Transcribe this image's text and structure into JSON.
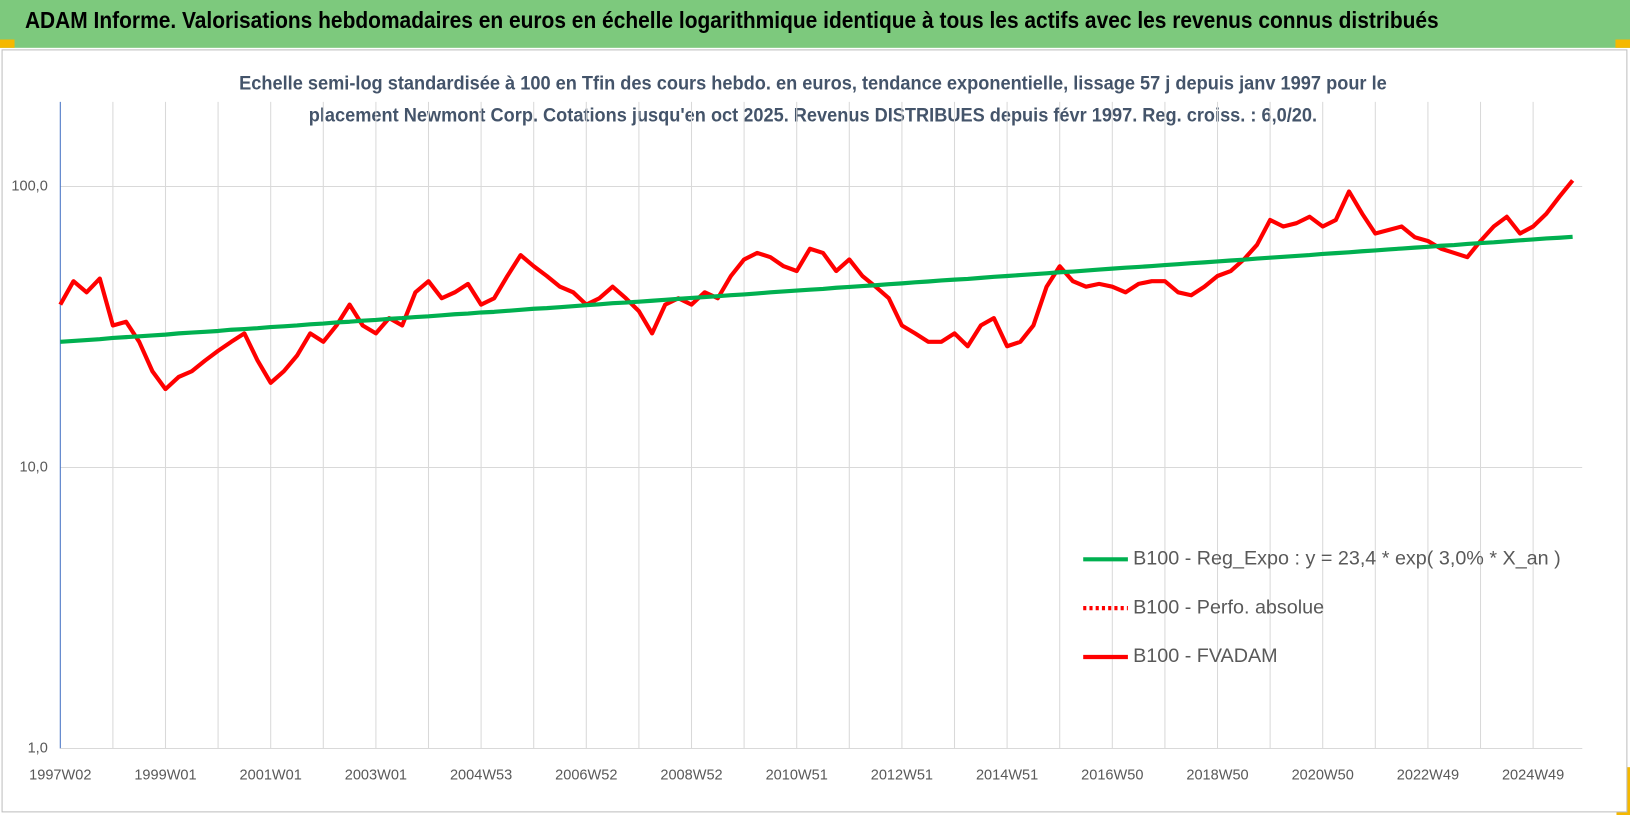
{
  "chart_data": {
    "type": "line",
    "title": "ADAM Informe. Valorisations hebdomadaires en euros en échelle logarithmique identique à tous les actifs avec les revenus connus distribués",
    "subtitle": [
      "Echelle semi-log standardisée à 100 en Tfin des cours hebdo. en euros, tendance exponentielle, lissage 57 j depuis janv 1997 pour le",
      "placement Newmont Corp. Cotations jusqu'en oct 2025. Revenus DISTRIBUES depuis févr 1997. Reg. croiss. : 6,0/20."
    ],
    "categories": [
      "1997W02",
      null,
      null,
      null,
      null,
      null,
      null,
      null,
      "1999W01",
      null,
      null,
      null,
      null,
      null,
      null,
      null,
      "2001W01",
      null,
      null,
      null,
      null,
      null,
      null,
      null,
      "2003W01",
      null,
      null,
      null,
      null,
      null,
      null,
      null,
      "2004W53",
      null,
      null,
      null,
      null,
      null,
      null,
      null,
      "2006W52",
      null,
      null,
      null,
      null,
      null,
      null,
      null,
      "2008W52",
      null,
      null,
      null,
      null,
      null,
      null,
      null,
      "2010W51",
      null,
      null,
      null,
      null,
      null,
      null,
      null,
      "2012W51",
      null,
      null,
      null,
      null,
      null,
      null,
      null,
      "2014W51",
      null,
      null,
      null,
      null,
      null,
      null,
      null,
      "2016W50",
      null,
      null,
      null,
      null,
      null,
      null,
      null,
      "2018W50",
      null,
      null,
      null,
      null,
      null,
      null,
      null,
      "2020W50",
      null,
      null,
      null,
      null,
      null,
      null,
      null,
      "2022W49",
      null,
      null,
      null,
      null,
      null,
      null,
      null,
      "2024W49",
      null,
      null,
      null
    ],
    "series": [
      {
        "name": "B100 - Reg_Expo : y = 23,4 * exp( 3,0% *  X_an )",
        "color": "#00b050",
        "style": "solid",
        "values": [
          28.0,
          28.2,
          28.4,
          28.6,
          28.9,
          29.1,
          29.3,
          29.5,
          29.7,
          30.0,
          30.2,
          30.4,
          30.6,
          30.9,
          31.1,
          31.3,
          31.6,
          31.8,
          32.0,
          32.3,
          32.5,
          32.8,
          33.0,
          33.3,
          33.5,
          33.8,
          34.0,
          34.3,
          34.5,
          34.8,
          35.1,
          35.3,
          35.6,
          35.8,
          36.1,
          36.4,
          36.7,
          36.9,
          37.2,
          37.5,
          37.8,
          38.1,
          38.4,
          38.6,
          38.9,
          39.2,
          39.5,
          39.8,
          40.1,
          40.4,
          40.7,
          41.0,
          41.3,
          41.6,
          42.0,
          42.3,
          42.6,
          42.9,
          43.2,
          43.6,
          43.9,
          44.2,
          44.5,
          44.9,
          45.2,
          45.6,
          45.9,
          46.3,
          46.6,
          46.9,
          47.3,
          47.7,
          48.0,
          48.4,
          48.7,
          49.1,
          49.5,
          49.8,
          50.2,
          50.6,
          51.0,
          51.4,
          51.7,
          52.1,
          52.5,
          52.9,
          53.3,
          53.7,
          54.1,
          54.5,
          54.9,
          55.4,
          55.8,
          56.2,
          56.6,
          57.0,
          57.5,
          57.9,
          58.3,
          58.8,
          59.2,
          59.7,
          60.1,
          60.6,
          61.0,
          61.5,
          61.9,
          62.4,
          62.9,
          63.3,
          63.8,
          64.3,
          64.8,
          65.3,
          65.7,
          66.2
        ]
      },
      {
        "name": "B100 - Perfo. absolue",
        "color": "#ff0000",
        "style": "dotted",
        "values": [
          null,
          null,
          null,
          null,
          null,
          null,
          null,
          null,
          null,
          null,
          null,
          null,
          null,
          null,
          null,
          null,
          null,
          null,
          null,
          null,
          null,
          null,
          null,
          null,
          null,
          null,
          null,
          null,
          null,
          null,
          null,
          null,
          null,
          null,
          null,
          null,
          null,
          null,
          null,
          null,
          null,
          null,
          null,
          null,
          null,
          null,
          null,
          null,
          null,
          null,
          null,
          null,
          null,
          null,
          null,
          null,
          null,
          null,
          null,
          null,
          null,
          null,
          null,
          null,
          null,
          null,
          null,
          null,
          null,
          null,
          null,
          null,
          null,
          null,
          null,
          null,
          null,
          null,
          null,
          null,
          null,
          null,
          null,
          null,
          null,
          null,
          null,
          null,
          null,
          null,
          null,
          null,
          null,
          null,
          null,
          null,
          null,
          null,
          null,
          null,
          null,
          null,
          null,
          null,
          null,
          null,
          null,
          null,
          null,
          null,
          null,
          null,
          null,
          null,
          null,
          null
        ]
      },
      {
        "name": "B100 - FVADAM",
        "color": "#ff0000",
        "style": "solid",
        "values": [
          38,
          46,
          42,
          47,
          32,
          33,
          28,
          22,
          19,
          21,
          22,
          24,
          26,
          28,
          30,
          24,
          20,
          22,
          25,
          30,
          28,
          32,
          38,
          32,
          30,
          34,
          32,
          42,
          46,
          40,
          42,
          45,
          38,
          40,
          48,
          57,
          52,
          48,
          44,
          42,
          38,
          40,
          44,
          40,
          36,
          30,
          38,
          40,
          38,
          42,
          40,
          48,
          55,
          58,
          56,
          52,
          50,
          60,
          58,
          50,
          55,
          48,
          44,
          40,
          32,
          30,
          28,
          28,
          30,
          27,
          32,
          34,
          27,
          28,
          32,
          44,
          52,
          46,
          44,
          45,
          44,
          42,
          45,
          46,
          46,
          42,
          41,
          44,
          48,
          50,
          55,
          62,
          76,
          72,
          74,
          78,
          72,
          76,
          96,
          80,
          68,
          70,
          72,
          66,
          64,
          60,
          58,
          56,
          64,
          72,
          78,
          68,
          72,
          80,
          92,
          105
        ]
      }
    ],
    "log_scale": true,
    "ylim": [
      1,
      200
    ],
    "yticks": [
      {
        "value": 1,
        "label": "1,0"
      },
      {
        "value": 10,
        "label": "10,0"
      },
      {
        "value": 100,
        "label": "100,0"
      }
    ],
    "grid": true,
    "legend": "lower right"
  }
}
